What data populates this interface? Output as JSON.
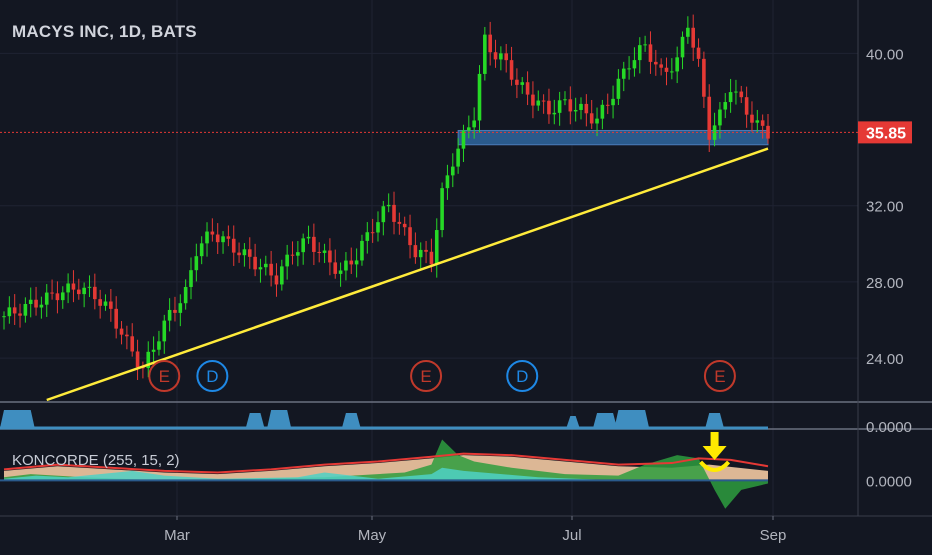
{
  "chart_data": {
    "type": "candlestick",
    "title": "MACYS INC, 1D, BATS",
    "price_axis": {
      "ylim": [
        21.8,
        42.8
      ],
      "ticks": [
        "40.00",
        "32.00",
        "28.00",
        "24.00"
      ],
      "tick_values": [
        40,
        32,
        28,
        24
      ]
    },
    "last_price": {
      "label": "35.85",
      "value": 35.85,
      "color": "#e53935"
    },
    "x_axis": {
      "labels": [
        "Mar",
        "May",
        "Jul",
        "Sep"
      ]
    },
    "close_path": [
      [
        0,
        26.2
      ],
      [
        6,
        26.9
      ],
      [
        11,
        27.5
      ],
      [
        14,
        27.7
      ],
      [
        17,
        27.3
      ],
      [
        20,
        26.4
      ],
      [
        23,
        24.8
      ],
      [
        26,
        23.4
      ],
      [
        28,
        24.6
      ],
      [
        31,
        26.3
      ],
      [
        34,
        27.4
      ],
      [
        36,
        29.7
      ],
      [
        39,
        30.6
      ],
      [
        42,
        30.0
      ],
      [
        45,
        29.4
      ],
      [
        48,
        28.8
      ],
      [
        51,
        28.2
      ],
      [
        54,
        29.6
      ],
      [
        57,
        30.2
      ],
      [
        60,
        29.3
      ],
      [
        63,
        28.5
      ],
      [
        66,
        29.4
      ],
      [
        69,
        30.9
      ],
      [
        72,
        32.0
      ],
      [
        74,
        31.0
      ],
      [
        77,
        29.6
      ],
      [
        80,
        29.2
      ],
      [
        82,
        32.6
      ],
      [
        84,
        34.4
      ],
      [
        86,
        35.6
      ],
      [
        88,
        36.8
      ],
      [
        90,
        40.7
      ],
      [
        92,
        39.9
      ],
      [
        94,
        39.5
      ],
      [
        96,
        38.4
      ],
      [
        99,
        37.6
      ],
      [
        102,
        37.0
      ],
      [
        105,
        37.4
      ],
      [
        108,
        37.0
      ],
      [
        111,
        36.5
      ],
      [
        114,
        37.9
      ],
      [
        117,
        39.5
      ],
      [
        120,
        40.4
      ],
      [
        123,
        38.9
      ],
      [
        126,
        39.6
      ],
      [
        128,
        41.6
      ],
      [
        130,
        39.4
      ],
      [
        132,
        35.8
      ],
      [
        134,
        36.7
      ],
      [
        136,
        38.3
      ],
      [
        138,
        37.4
      ],
      [
        141,
        36.2
      ],
      [
        143,
        35.85
      ]
    ],
    "support_zone": {
      "x0": 85,
      "x1": 143,
      "y0": 35.2,
      "y1": 35.95,
      "color": "#2a5a8c"
    },
    "trendline": {
      "from": [
        8,
        21.8
      ],
      "to": [
        143,
        35.0
      ],
      "color": "#ffeb3b"
    },
    "events": [
      {
        "label": "E",
        "x": 30,
        "color": "#c0392b"
      },
      {
        "label": "D",
        "x": 39,
        "color": "#1e88e5"
      },
      {
        "label": "E",
        "x": 79,
        "color": "#c0392b"
      },
      {
        "label": "D",
        "x": 97,
        "color": "#1e88e5"
      },
      {
        "label": "E",
        "x": 134,
        "color": "#c0392b"
      }
    ],
    "volume_pane": {
      "axis_label": "0.0000",
      "spikes": [
        [
          0,
          5,
          6
        ],
        [
          46,
          48,
          5
        ],
        [
          50,
          53,
          6
        ],
        [
          64,
          66,
          5
        ],
        [
          106,
          107,
          4
        ],
        [
          111,
          114,
          5
        ],
        [
          115,
          120,
          6
        ],
        [
          132,
          134,
          5
        ]
      ]
    },
    "indicator": {
      "label": "KONCORDE (255, 15, 2)",
      "axis_label": "0.0000",
      "zero": 0,
      "ylim": [
        -1.1,
        1.6
      ],
      "tan": [
        [
          0,
          0.3
        ],
        [
          10,
          0.45
        ],
        [
          20,
          0.35
        ],
        [
          30,
          0.25
        ],
        [
          40,
          0.2
        ],
        [
          50,
          0.3
        ],
        [
          60,
          0.45
        ],
        [
          70,
          0.55
        ],
        [
          80,
          0.7
        ],
        [
          86,
          0.8
        ],
        [
          95,
          0.75
        ],
        [
          105,
          0.6
        ],
        [
          115,
          0.45
        ],
        [
          125,
          0.4
        ],
        [
          132,
          0.5
        ],
        [
          143,
          0.3
        ]
      ],
      "green": [
        [
          0,
          0.1
        ],
        [
          5,
          0.2
        ],
        [
          15,
          0.1
        ],
        [
          30,
          0.0
        ],
        [
          45,
          0.05
        ],
        [
          60,
          0.1
        ],
        [
          75,
          0.25
        ],
        [
          80,
          0.5
        ],
        [
          82,
          1.3
        ],
        [
          85,
          0.8
        ],
        [
          88,
          0.6
        ],
        [
          95,
          0.4
        ],
        [
          105,
          0.2
        ],
        [
          115,
          0.15
        ],
        [
          120,
          0.5
        ],
        [
          126,
          0.8
        ],
        [
          130,
          0.7
        ],
        [
          133,
          -0.3
        ],
        [
          135,
          -0.9
        ],
        [
          138,
          -0.3
        ],
        [
          143,
          -0.1
        ]
      ],
      "cyan": [
        [
          0,
          0.05
        ],
        [
          6,
          0.15
        ],
        [
          12,
          0.1
        ],
        [
          24,
          0.3
        ],
        [
          30,
          0.15
        ],
        [
          40,
          0.05
        ],
        [
          55,
          0.1
        ],
        [
          60,
          0.25
        ],
        [
          70,
          0.05
        ],
        [
          80,
          0.2
        ],
        [
          82,
          0.4
        ],
        [
          86,
          0.3
        ],
        [
          100,
          0.1
        ],
        [
          115,
          0.0
        ],
        [
          143,
          0.0
        ]
      ],
      "red_line": [
        [
          0,
          0.35
        ],
        [
          10,
          0.5
        ],
        [
          20,
          0.4
        ],
        [
          30,
          0.3
        ],
        [
          40,
          0.25
        ],
        [
          50,
          0.35
        ],
        [
          60,
          0.5
        ],
        [
          70,
          0.6
        ],
        [
          80,
          0.75
        ],
        [
          86,
          0.85
        ],
        [
          95,
          0.8
        ],
        [
          105,
          0.65
        ],
        [
          115,
          0.5
        ],
        [
          125,
          0.55
        ],
        [
          130,
          0.7
        ],
        [
          136,
          0.65
        ],
        [
          143,
          0.45
        ]
      ],
      "arrow_color": "#ffea00"
    }
  }
}
